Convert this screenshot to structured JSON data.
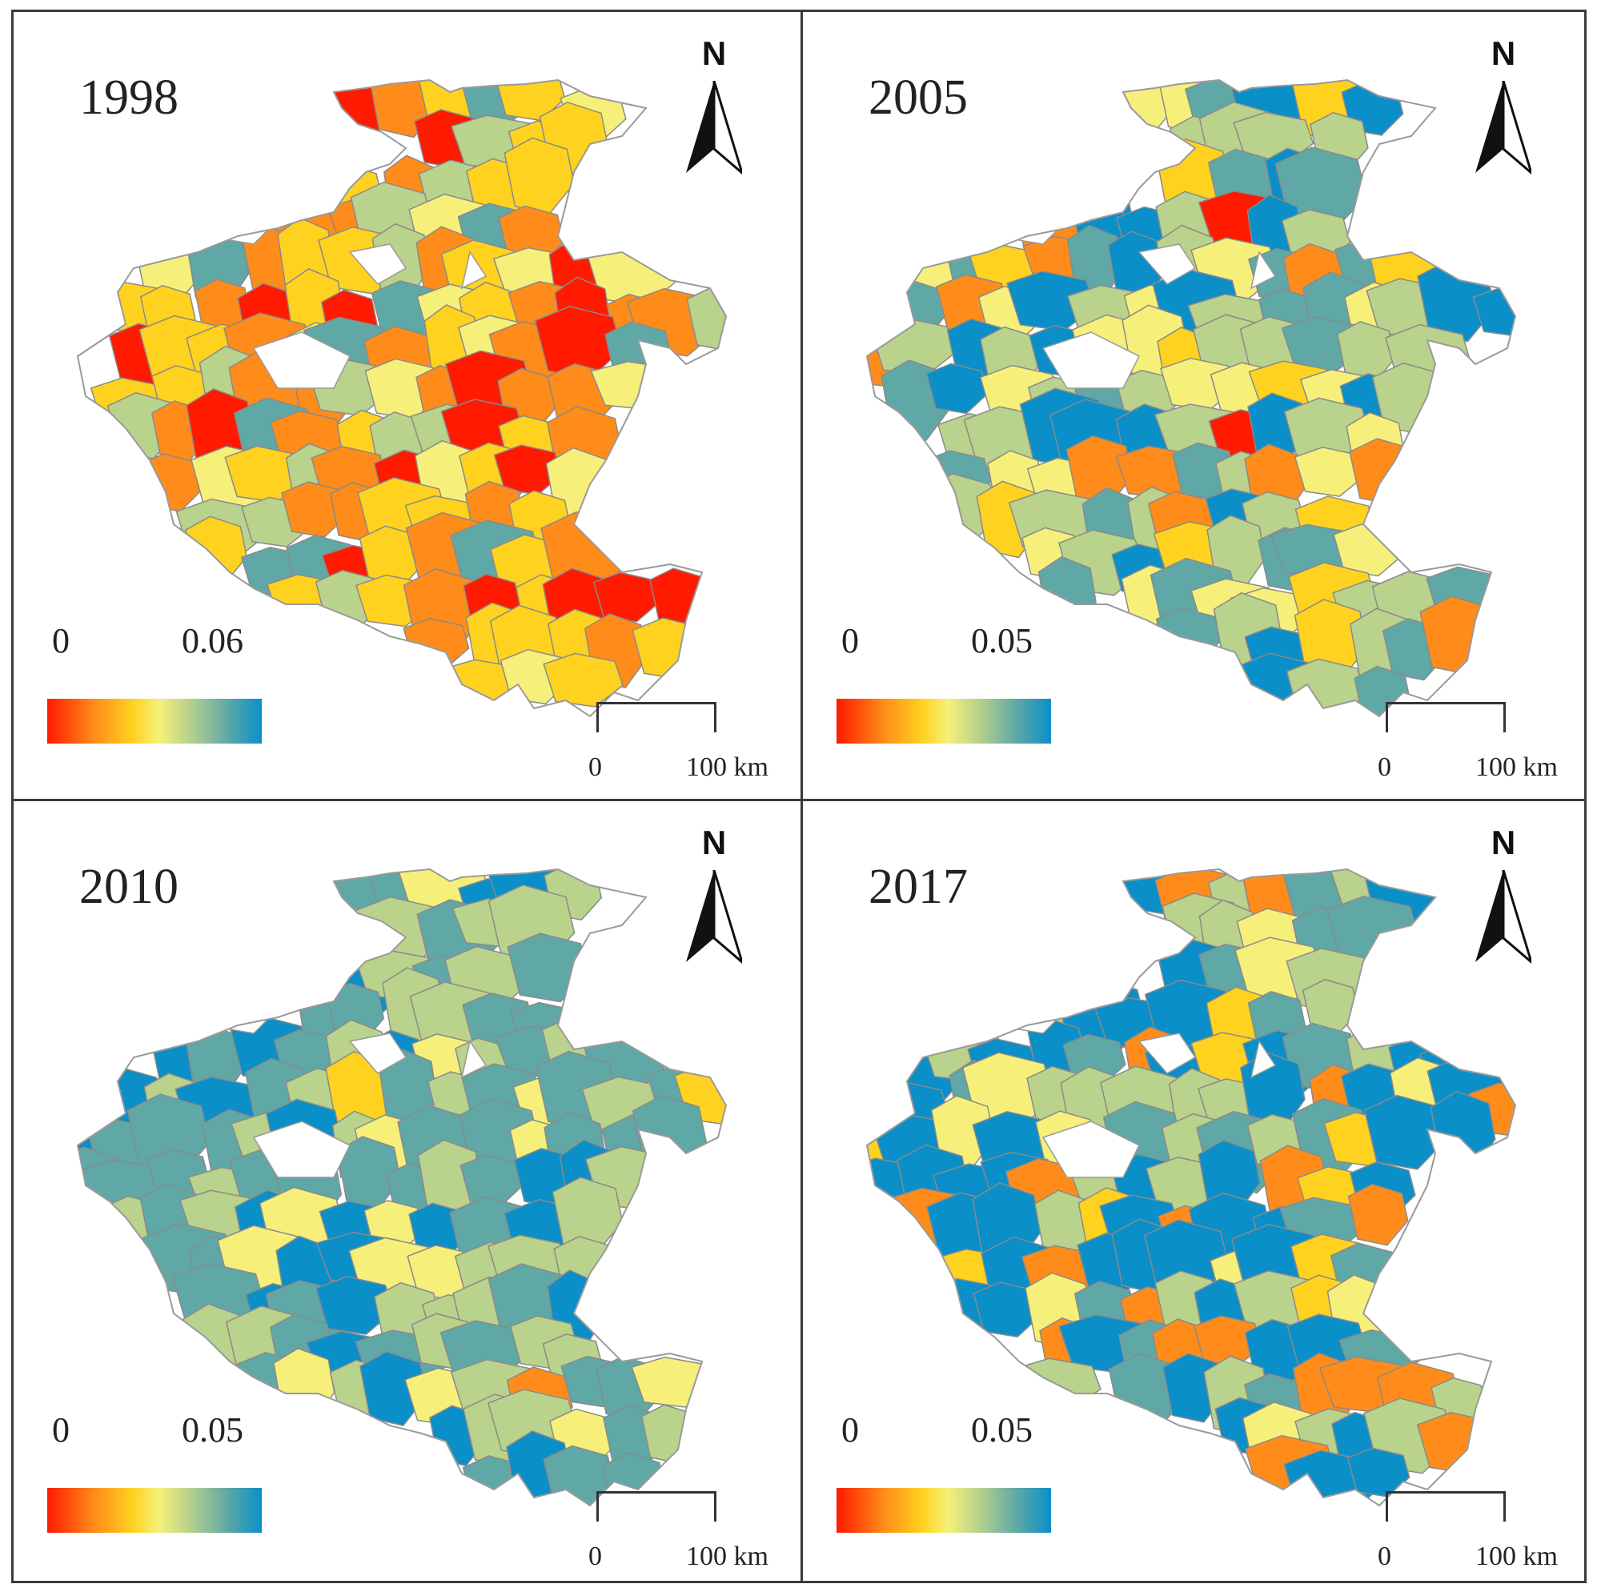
{
  "panels": [
    {
      "year": "1998",
      "legend": {
        "min": "0",
        "max": "0.06"
      },
      "scale": {
        "start": "0",
        "end": "100 km"
      },
      "north": "N",
      "theme": "warm"
    },
    {
      "year": "2005",
      "legend": {
        "min": "0",
        "max": "0.05"
      },
      "scale": {
        "start": "0",
        "end": "100 km"
      },
      "north": "N",
      "theme": "mixed"
    },
    {
      "year": "2010",
      "legend": {
        "min": "0",
        "max": "0.05"
      },
      "scale": {
        "start": "0",
        "end": "100 km"
      },
      "north": "N",
      "theme": "cool"
    },
    {
      "year": "2017",
      "legend": {
        "min": "0",
        "max": "0.05"
      },
      "scale": {
        "start": "0",
        "end": "100 km"
      },
      "north": "N",
      "theme": "contrast"
    }
  ],
  "colors": {
    "ramp": [
      "#ff1a00",
      "#ff8c1a",
      "#ffd21f",
      "#f6f07a",
      "#b9d28c",
      "#5fa8a6",
      "#0a8fc9"
    ],
    "outline": "#8a8a8a",
    "nodata": "#ffffff"
  },
  "icons": {
    "north_arrow": "north-arrow-icon"
  }
}
